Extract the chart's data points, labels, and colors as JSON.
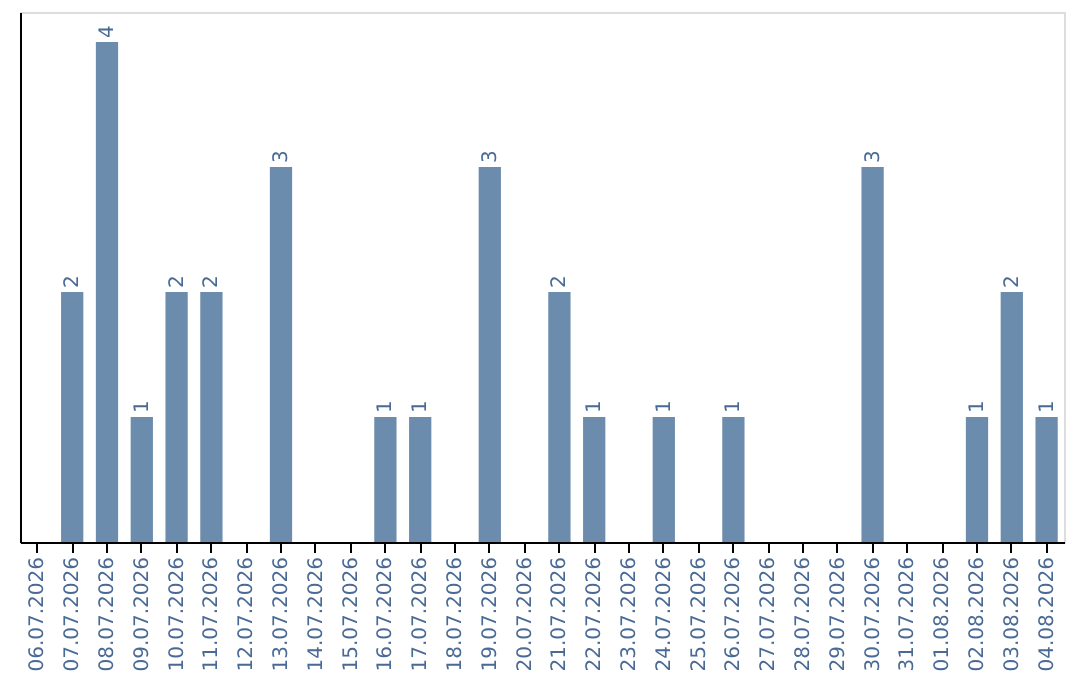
{
  "chart_data": {
    "type": "bar",
    "categories": [
      "06.07.2026",
      "07.07.2026",
      "08.07.2026",
      "09.07.2026",
      "10.07.2026",
      "11.07.2026",
      "12.07.2026",
      "13.07.2026",
      "14.07.2026",
      "15.07.2026",
      "16.07.2026",
      "17.07.2026",
      "18.07.2026",
      "19.07.2026",
      "20.07.2026",
      "21.07.2026",
      "22.07.2026",
      "23.07.2026",
      "24.07.2026",
      "25.07.2026",
      "26.07.2026",
      "27.07.2026",
      "28.07.2026",
      "29.07.2026",
      "30.07.2026",
      "31.07.2026",
      "01.08.2026",
      "02.08.2026",
      "03.08.2026",
      "04.08.2026"
    ],
    "values": [
      null,
      2,
      4,
      1,
      2,
      2,
      null,
      3,
      null,
      null,
      1,
      1,
      null,
      3,
      null,
      2,
      1,
      null,
      1,
      null,
      1,
      null,
      null,
      null,
      3,
      null,
      null,
      1,
      2,
      1
    ],
    "color": "#6b8cac",
    "data_labels": true
  }
}
